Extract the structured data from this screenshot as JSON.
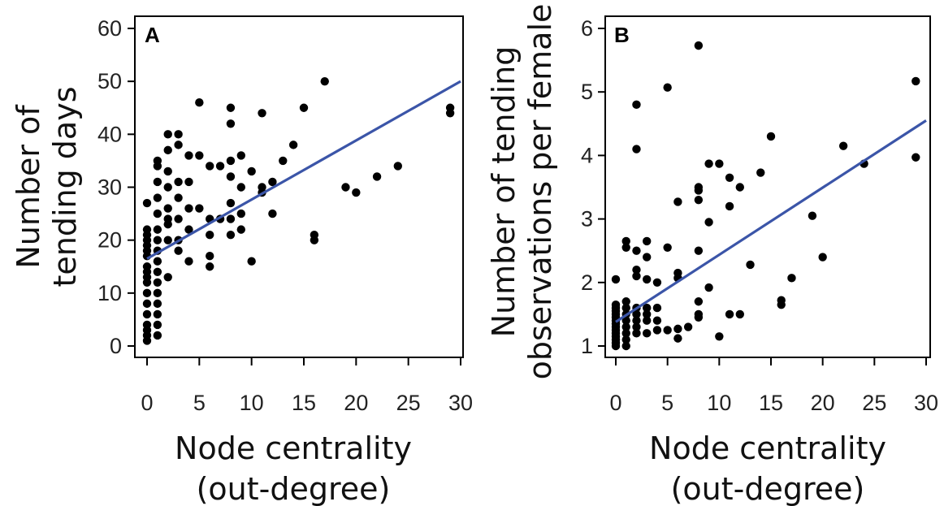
{
  "chart_data": [
    {
      "type": "scatter",
      "panel_label": "A",
      "xlabel_line1": "Node centrality",
      "xlabel_line2": "(out-degree)",
      "ylabel_line1": "Number of",
      "ylabel_line2": "tending days",
      "xlim": [
        0,
        30
      ],
      "ylim": [
        0,
        60
      ],
      "xticks": [
        0,
        5,
        10,
        15,
        20,
        25,
        30
      ],
      "yticks": [
        0,
        10,
        20,
        30,
        40,
        50,
        60
      ],
      "point_color": "#000000",
      "fit_color": "#3b55a8",
      "fit_line": {
        "x0": 0,
        "y0": 16.5,
        "x1": 30,
        "y1": 50
      },
      "points": [
        [
          0,
          1
        ],
        [
          0,
          2
        ],
        [
          0,
          3
        ],
        [
          0,
          4
        ],
        [
          0,
          6
        ],
        [
          0,
          8
        ],
        [
          0,
          10
        ],
        [
          0,
          12
        ],
        [
          0,
          13
        ],
        [
          0,
          14
        ],
        [
          0,
          15
        ],
        [
          0,
          17
        ],
        [
          0,
          18
        ],
        [
          0,
          19
        ],
        [
          0,
          20
        ],
        [
          0,
          21
        ],
        [
          0,
          22
        ],
        [
          0,
          27
        ],
        [
          1,
          2
        ],
        [
          1,
          4
        ],
        [
          1,
          6
        ],
        [
          1,
          8
        ],
        [
          1,
          10
        ],
        [
          1,
          12
        ],
        [
          1,
          14
        ],
        [
          1,
          16
        ],
        [
          1,
          18
        ],
        [
          1,
          20
        ],
        [
          1,
          22
        ],
        [
          1,
          25
        ],
        [
          1,
          28
        ],
        [
          1,
          31
        ],
        [
          1,
          34
        ],
        [
          1,
          35
        ],
        [
          2,
          13
        ],
        [
          2,
          20
        ],
        [
          2,
          23
        ],
        [
          2,
          24
        ],
        [
          2,
          26
        ],
        [
          2,
          30
        ],
        [
          2,
          33
        ],
        [
          2,
          37
        ],
        [
          2,
          40
        ],
        [
          3,
          18
        ],
        [
          3,
          20
        ],
        [
          3,
          24
        ],
        [
          3,
          28
        ],
        [
          3,
          31
        ],
        [
          3,
          38
        ],
        [
          3,
          40
        ],
        [
          4,
          16
        ],
        [
          4,
          22
        ],
        [
          4,
          26
        ],
        [
          4,
          31
        ],
        [
          4,
          36
        ],
        [
          5,
          26
        ],
        [
          5,
          36
        ],
        [
          5,
          46
        ],
        [
          6,
          15
        ],
        [
          6,
          17
        ],
        [
          6,
          21
        ],
        [
          6,
          24
        ],
        [
          6,
          34
        ],
        [
          7,
          24
        ],
        [
          7,
          34
        ],
        [
          8,
          21
        ],
        [
          8,
          24
        ],
        [
          8,
          27
        ],
        [
          8,
          32
        ],
        [
          8,
          35
        ],
        [
          8,
          42
        ],
        [
          8,
          45
        ],
        [
          9,
          22
        ],
        [
          9,
          25
        ],
        [
          9,
          30
        ],
        [
          9,
          36
        ],
        [
          10,
          16
        ],
        [
          10,
          33
        ],
        [
          11,
          29
        ],
        [
          11,
          30
        ],
        [
          11,
          44
        ],
        [
          12,
          25
        ],
        [
          12,
          31
        ],
        [
          13,
          35
        ],
        [
          14,
          38
        ],
        [
          15,
          45
        ],
        [
          16,
          20
        ],
        [
          16,
          21
        ],
        [
          17,
          50
        ],
        [
          19,
          30
        ],
        [
          20,
          29
        ],
        [
          22,
          32
        ],
        [
          24,
          34
        ],
        [
          29,
          44
        ],
        [
          29,
          45
        ]
      ]
    },
    {
      "type": "scatter",
      "panel_label": "B",
      "xlabel_line1": "Node centrality",
      "xlabel_line2": "(out-degree)",
      "ylabel_line1": "Number of tending",
      "ylabel_line2": "observations per female",
      "xlim": [
        0,
        30
      ],
      "ylim": [
        1,
        6
      ],
      "xticks": [
        0,
        5,
        10,
        15,
        20,
        25,
        30
      ],
      "yticks": [
        1,
        2,
        3,
        4,
        5,
        6
      ],
      "point_color": "#000000",
      "fit_color": "#3b55a8",
      "fit_line": {
        "x0": 0,
        "y0": 1.38,
        "x1": 30,
        "y1": 4.55
      },
      "points": [
        [
          0,
          1.0
        ],
        [
          0,
          1.05
        ],
        [
          0,
          1.1
        ],
        [
          0,
          1.15
        ],
        [
          0,
          1.2
        ],
        [
          0,
          1.25
        ],
        [
          0,
          1.3
        ],
        [
          0,
          1.35
        ],
        [
          0,
          1.4
        ],
        [
          0,
          1.45
        ],
        [
          0,
          1.5
        ],
        [
          0,
          1.55
        ],
        [
          0,
          1.6
        ],
        [
          0,
          1.65
        ],
        [
          0,
          2.05
        ],
        [
          1,
          1.0
        ],
        [
          1,
          1.1
        ],
        [
          1,
          1.2
        ],
        [
          1,
          1.3
        ],
        [
          1,
          1.4
        ],
        [
          1,
          1.5
        ],
        [
          1,
          1.6
        ],
        [
          1,
          1.7
        ],
        [
          1,
          2.55
        ],
        [
          1,
          2.65
        ],
        [
          2,
          1.2
        ],
        [
          2,
          1.3
        ],
        [
          2,
          1.4
        ],
        [
          2,
          1.5
        ],
        [
          2,
          1.6
        ],
        [
          2,
          2.1
        ],
        [
          2,
          2.2
        ],
        [
          2,
          2.5
        ],
        [
          2,
          4.1
        ],
        [
          2,
          4.8
        ],
        [
          3,
          1.2
        ],
        [
          3,
          1.4
        ],
        [
          3,
          1.5
        ],
        [
          3,
          1.6
        ],
        [
          3,
          2.05
        ],
        [
          3,
          2.4
        ],
        [
          3,
          2.65
        ],
        [
          4,
          1.25
        ],
        [
          4,
          1.4
        ],
        [
          4,
          1.6
        ],
        [
          4,
          2.0
        ],
        [
          5,
          1.25
        ],
        [
          5,
          2.55
        ],
        [
          5,
          5.07
        ],
        [
          6,
          1.12
        ],
        [
          6,
          1.27
        ],
        [
          6,
          2.07
        ],
        [
          6,
          2.15
        ],
        [
          6,
          3.27
        ],
        [
          7,
          1.3
        ],
        [
          8,
          1.45
        ],
        [
          8,
          1.5
        ],
        [
          8,
          1.7
        ],
        [
          8,
          2.5
        ],
        [
          8,
          3.3
        ],
        [
          8,
          3.45
        ],
        [
          8,
          3.5
        ],
        [
          8,
          5.73
        ],
        [
          9,
          1.92
        ],
        [
          9,
          2.95
        ],
        [
          9,
          3.87
        ],
        [
          10,
          1.15
        ],
        [
          10,
          3.87
        ],
        [
          11,
          1.5
        ],
        [
          11,
          3.2
        ],
        [
          11,
          3.65
        ],
        [
          12,
          1.5
        ],
        [
          12,
          3.5
        ],
        [
          13,
          2.28
        ],
        [
          14,
          3.73
        ],
        [
          15,
          4.3
        ],
        [
          16,
          1.65
        ],
        [
          16,
          1.72
        ],
        [
          17,
          2.07
        ],
        [
          19,
          3.05
        ],
        [
          20,
          2.4
        ],
        [
          22,
          4.15
        ],
        [
          24,
          3.87
        ],
        [
          29,
          3.97
        ],
        [
          29,
          5.17
        ]
      ]
    }
  ]
}
